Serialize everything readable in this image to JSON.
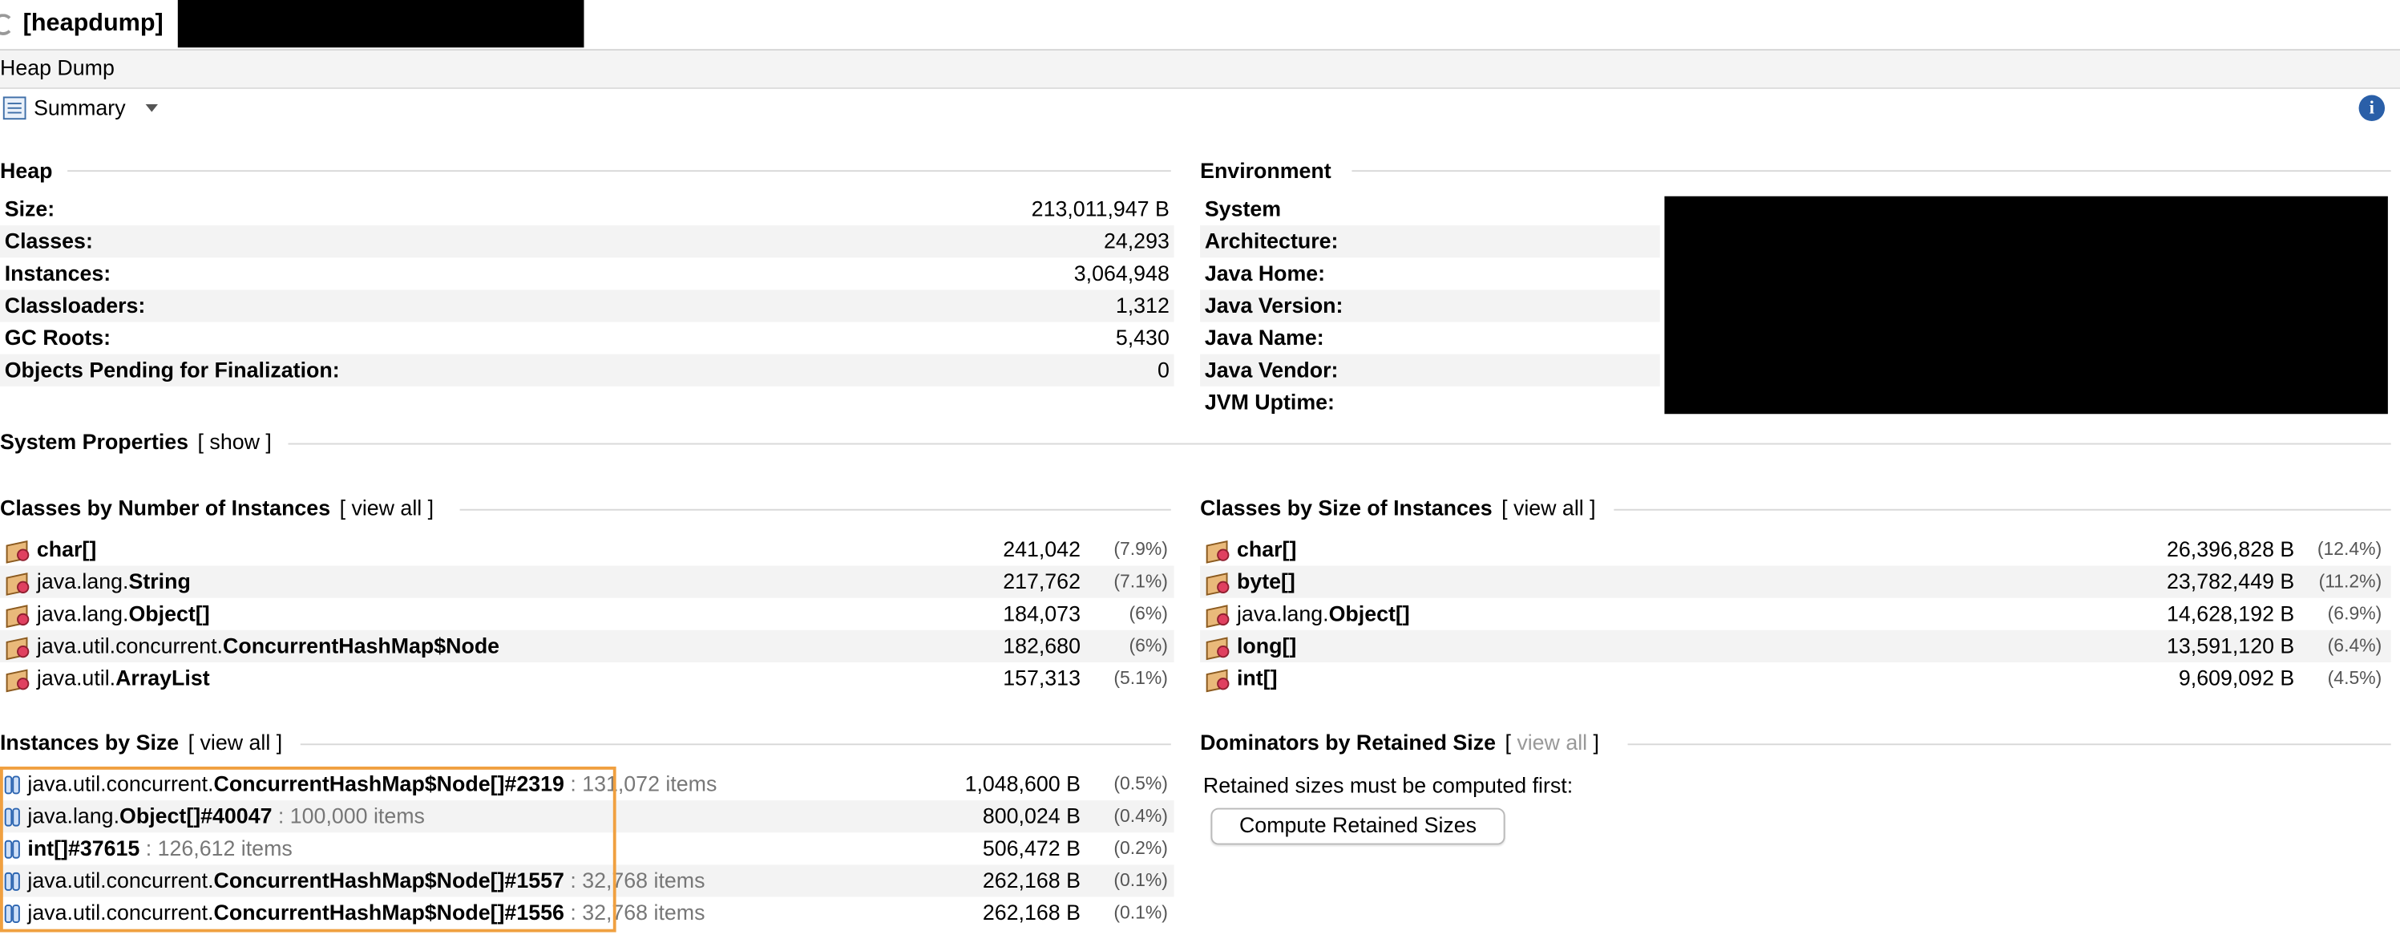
{
  "window": {
    "title": "[heapdump]"
  },
  "subtab": {
    "label": "Heap Dump"
  },
  "view": {
    "selected": "Summary"
  },
  "heap": {
    "title": "Heap",
    "rows": [
      {
        "label": "Size:",
        "value": "213,011,947 B"
      },
      {
        "label": "Classes:",
        "value": "24,293"
      },
      {
        "label": "Instances:",
        "value": "3,064,948"
      },
      {
        "label": "Classloaders:",
        "value": "1,312"
      },
      {
        "label": "GC Roots:",
        "value": "5,430"
      },
      {
        "label": "Objects Pending for Finalization:",
        "value": "0"
      }
    ]
  },
  "environment": {
    "title": "Environment",
    "rows": [
      {
        "label": "System"
      },
      {
        "label": "Architecture:"
      },
      {
        "label": "Java Home:"
      },
      {
        "label": "Java Version:"
      },
      {
        "label": "Java Name:"
      },
      {
        "label": "Java Vendor:"
      },
      {
        "label": "JVM Uptime:"
      }
    ]
  },
  "system_properties": {
    "title": "System Properties",
    "link": "show"
  },
  "classes_by_count": {
    "title": "Classes by Number of Instances",
    "link": "view all",
    "rows": [
      {
        "prefix": "",
        "name": "char[]",
        "value": "241,042",
        "pct": "(7.9%)"
      },
      {
        "prefix": "java.lang.",
        "name": "String",
        "value": "217,762",
        "pct": "(7.1%)"
      },
      {
        "prefix": "java.lang.",
        "name": "Object[]",
        "value": "184,073",
        "pct": "(6%)"
      },
      {
        "prefix": "java.util.concurrent.",
        "name": "ConcurrentHashMap$Node",
        "value": "182,680",
        "pct": "(6%)"
      },
      {
        "prefix": "java.util.",
        "name": "ArrayList",
        "value": "157,313",
        "pct": "(5.1%)"
      }
    ]
  },
  "classes_by_size": {
    "title": "Classes by Size of Instances",
    "link": "view all",
    "rows": [
      {
        "prefix": "",
        "name": "char[]",
        "value": "26,396,828 B",
        "pct": "(12.4%)"
      },
      {
        "prefix": "",
        "name": "byte[]",
        "value": "23,782,449 B",
        "pct": "(11.2%)"
      },
      {
        "prefix": "java.lang.",
        "name": "Object[]",
        "value": "14,628,192 B",
        "pct": "(6.9%)"
      },
      {
        "prefix": "",
        "name": "long[]",
        "value": "13,591,120 B",
        "pct": "(6.4%)"
      },
      {
        "prefix": "",
        "name": "int[]",
        "value": "9,609,092 B",
        "pct": "(4.5%)"
      }
    ]
  },
  "instances_by_size": {
    "title": "Instances by Size",
    "link": "view all",
    "rows": [
      {
        "prefix": "java.util.concurrent.",
        "name": "ConcurrentHashMap$Node[]#2319",
        "items": ": 131,072 items",
        "value": "1,048,600 B",
        "pct": "(0.5%)"
      },
      {
        "prefix": "java.lang.",
        "name": "Object[]#40047",
        "items": ": 100,000 items",
        "value": "800,024 B",
        "pct": "(0.4%)"
      },
      {
        "prefix": "",
        "name": "int[]#37615",
        "items": ": 126,612 items",
        "value": "506,472 B",
        "pct": "(0.2%)"
      },
      {
        "prefix": "java.util.concurrent.",
        "name": "ConcurrentHashMap$Node[]#1557",
        "items": ": 32,768 items",
        "value": "262,168 B",
        "pct": "(0.1%)"
      },
      {
        "prefix": "java.util.concurrent.",
        "name": "ConcurrentHashMap$Node[]#1556",
        "items": ": 32,768 items",
        "value": "262,168 B",
        "pct": "(0.1%)"
      }
    ]
  },
  "dominators": {
    "title": "Dominators by Retained Size",
    "link": "view all",
    "note": "Retained sizes must be computed first:",
    "button": "Compute Retained Sizes"
  }
}
